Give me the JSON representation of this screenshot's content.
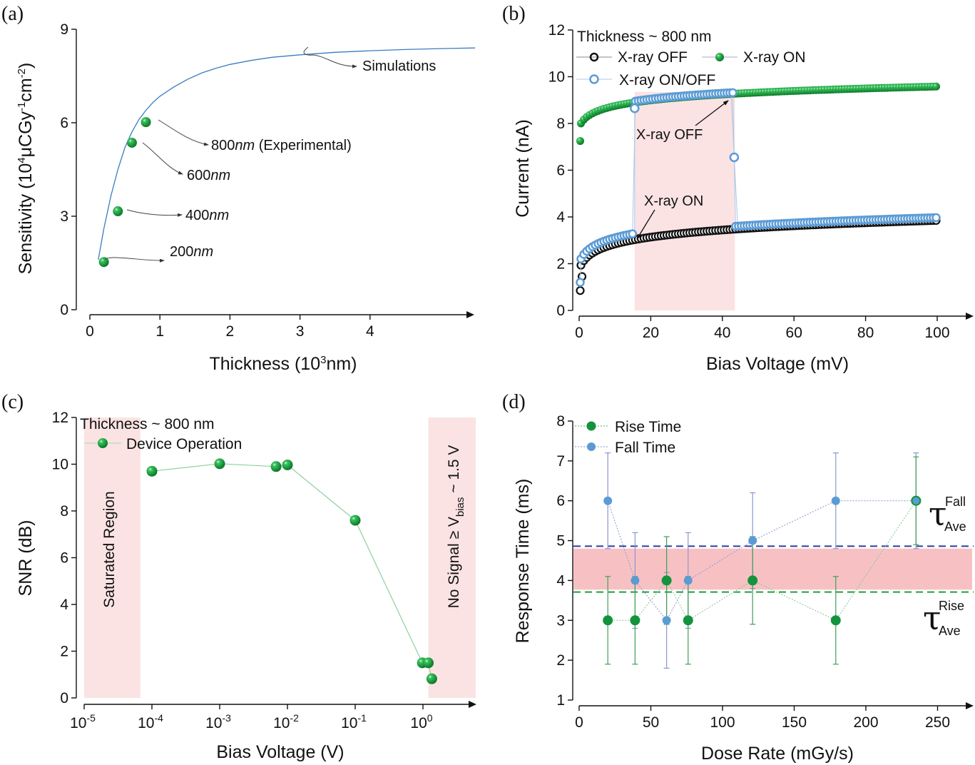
{
  "chart_data": [
    {
      "id": "a",
      "panel_label": "(a)",
      "type": "scatter",
      "title": "",
      "xlabel": "Thickness (10",
      "xlabel_sup": "3",
      "xlabel_tail": "nm)",
      "ylabel": "Sensitivity (10",
      "ylabel_sup1": "4",
      "ylabel_mid": "μCGy",
      "ylabel_sup2": "-1",
      "ylabel_mid2": "cm",
      "ylabel_sup3": "-2",
      "ylabel_tail": ")",
      "xlim": [
        0,
        5.5
      ],
      "ylim": [
        0,
        9
      ],
      "xticks": [
        0,
        1,
        2,
        3,
        4
      ],
      "xtick_labels": [
        "0",
        "1",
        "2",
        "3",
        "4"
      ],
      "yticks": [
        0,
        3,
        6,
        9
      ],
      "ytick_labels": [
        "0",
        "3",
        "6",
        "9"
      ],
      "series": [
        {
          "name": "Simulations",
          "kind": "line",
          "color": "#3a7cc2",
          "x": [
            0.12,
            0.2,
            0.3,
            0.4,
            0.5,
            0.6,
            0.7,
            0.8,
            0.9,
            1.0,
            1.2,
            1.4,
            1.6,
            1.8,
            2.0,
            2.3,
            2.6,
            3.0,
            3.5,
            4.0,
            4.5,
            5.0,
            5.5
          ],
          "y": [
            1.6,
            2.6,
            3.65,
            4.5,
            5.2,
            5.7,
            6.1,
            6.4,
            6.65,
            6.85,
            7.15,
            7.4,
            7.6,
            7.75,
            7.87,
            8.0,
            8.1,
            8.18,
            8.26,
            8.31,
            8.35,
            8.38,
            8.4
          ]
        },
        {
          "name": "Experimental",
          "kind": "points",
          "color": "#1aa03a",
          "x": [
            0.2,
            0.4,
            0.6,
            0.8
          ],
          "y": [
            1.53,
            3.16,
            5.36,
            6.02
          ]
        }
      ],
      "annotations": [
        {
          "text": "Simulations",
          "italic_part": "",
          "tail": ""
        },
        {
          "text": "800",
          "italic_part": "nm",
          "tail": " (Experimental)"
        },
        {
          "text": "600",
          "italic_part": "nm",
          "tail": ""
        },
        {
          "text": "400",
          "italic_part": "nm",
          "tail": ""
        },
        {
          "text": "200",
          "italic_part": "nm",
          "tail": ""
        }
      ],
      "grid": false
    },
    {
      "id": "b",
      "panel_label": "(b)",
      "type": "scatter",
      "title": "Thickness ~ 800 nm",
      "xlabel": "Bias Voltage (mV)",
      "ylabel": "Current (nA)",
      "xlim": [
        0,
        108
      ],
      "ylim": [
        0,
        12
      ],
      "xticks": [
        0,
        20,
        40,
        60,
        80,
        100
      ],
      "xtick_labels": [
        "0",
        "20",
        "40",
        "60",
        "80",
        "100"
      ],
      "yticks": [
        0,
        2,
        4,
        6,
        8,
        10,
        12
      ],
      "ytick_labels": [
        "0",
        "2",
        "4",
        "6",
        "8",
        "10",
        "12"
      ],
      "shaded_region_x": [
        15.5,
        43.5
      ],
      "shaded_color": "#fbe3e3",
      "series": [
        {
          "name": "X-ray OFF",
          "marker": "open-circle",
          "color": "#111111",
          "model": {
            "type": "log",
            "x0": 0.3,
            "y0": 0.85,
            "y_at_100": 3.85,
            "start_extra": [
              [
                0.3,
                0.85
              ],
              [
                0.8,
                1.45
              ]
            ]
          }
        },
        {
          "name": "X-ray ON",
          "marker": "filled-sphere",
          "color": "#1aa03a",
          "model": {
            "type": "log",
            "x0": 0.3,
            "y0": 7.25,
            "y_at_100": 9.58
          }
        },
        {
          "name": "X-ray ON/OFF",
          "marker": "open-circle",
          "color": "#5b9bd5",
          "switch_on_x": 15.5,
          "switch_off_x": 43.5,
          "transition_point": [
            43.3,
            6.55
          ]
        }
      ],
      "legend": [
        "X-ray OFF",
        "X-ray ON",
        "X-ray ON/OFF"
      ],
      "legend_position": "top-left",
      "annotations": [
        {
          "text": "X-ray OFF",
          "arrow_to": [
            42.5,
            9.15
          ]
        },
        {
          "text": "X-ray ON",
          "arrow_to": [
            15.5,
            2.9
          ]
        }
      ],
      "grid": false
    },
    {
      "id": "c",
      "panel_label": "(c)",
      "type": "line",
      "title": "Thickness ~ 800 nm",
      "xlabel": "Bias Voltage (V)",
      "ylabel": "SNR (dB)",
      "xscale": "log",
      "xlim_log10": [
        -5,
        0.8
      ],
      "ylim": [
        0,
        12
      ],
      "xticks_log10": [
        -5,
        -4,
        -3,
        -2,
        -1,
        0
      ],
      "xtick_labels": [
        "-5",
        "-4",
        "-3",
        "-2",
        "-1",
        "0"
      ],
      "xtick_base": "10",
      "yticks": [
        0,
        2,
        4,
        6,
        8,
        10,
        12
      ],
      "ytick_labels": [
        "0",
        "2",
        "4",
        "6",
        "8",
        "10",
        "12"
      ],
      "series": [
        {
          "name": "Device Operation",
          "color": "#1aa03a",
          "x": [
            0.0001,
            0.001,
            0.0068,
            0.01,
            0.1,
            0.98,
            1.2,
            1.35
          ],
          "y": [
            9.7,
            10.02,
            9.9,
            9.97,
            7.6,
            1.5,
            1.5,
            0.82
          ]
        }
      ],
      "shaded_regions": [
        {
          "label": "Saturated Region",
          "x_log10": [
            -5,
            -4.17
          ]
        },
        {
          "label": "No Signal ≥ V",
          "label_sub": "bias",
          "label_tail": " ~ 1.5 V",
          "x_log10": [
            0.08,
            0.78
          ]
        }
      ],
      "shaded_color": "#fbe3e3",
      "legend_position": "top-left",
      "grid": false
    },
    {
      "id": "d",
      "panel_label": "(d)",
      "type": "scatter",
      "title": "",
      "xlabel": "Dose Rate (mGy/s)",
      "ylabel": "Response Time (ms)",
      "xlim": [
        0,
        272
      ],
      "ylim": [
        1,
        8
      ],
      "xticks": [
        0,
        50,
        100,
        150,
        200,
        250
      ],
      "xtick_labels": [
        "0",
        "50",
        "100",
        "150",
        "200",
        "250"
      ],
      "yticks": [
        1,
        2,
        3,
        4,
        5,
        6,
        7,
        8
      ],
      "ytick_labels": [
        "1",
        "2",
        "3",
        "4",
        "5",
        "6",
        "7",
        "8"
      ],
      "series": [
        {
          "name": "Rise Time",
          "color": "#14933c",
          "x": [
            20,
            39,
            61,
            76,
            121,
            179,
            235
          ],
          "y": [
            3,
            3,
            4,
            3,
            4,
            3,
            6
          ],
          "err": [
            1.1,
            1.1,
            1.1,
            1.1,
            1.1,
            1.1,
            1.1
          ]
        },
        {
          "name": "Fall Time",
          "color": "#5b9bd5",
          "x": [
            20,
            39,
            61,
            76,
            121,
            179,
            235
          ],
          "y": [
            6,
            4,
            3,
            4,
            5,
            6,
            6
          ],
          "err": [
            1.2,
            1.2,
            1.2,
            1.2,
            1.2,
            1.2,
            1.2
          ]
        }
      ],
      "reference_lines": [
        {
          "name": "tau_ave_fall",
          "y": 4.86,
          "color": "#2b3fa0",
          "style": "dashed",
          "label": "τ",
          "sup": "Fall",
          "sub": "Ave"
        },
        {
          "name": "tau_ave_rise",
          "y": 3.71,
          "color": "#1aa03a",
          "style": "dashed",
          "label": "τ",
          "sup": "Rise",
          "sub": "Ave"
        }
      ],
      "band": {
        "y": [
          3.77,
          4.8
        ],
        "color": "#f7c1c4"
      },
      "legend_position": "top-left",
      "grid": false
    }
  ]
}
